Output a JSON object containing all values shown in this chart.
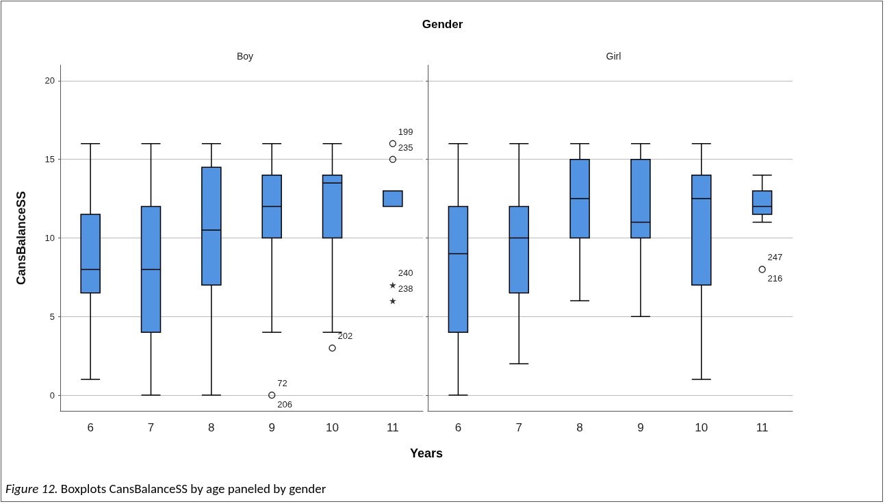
{
  "chart_data": [
    {
      "type": "box",
      "subtitle": "Boy",
      "xlabel": "Years",
      "ylabel": "CansBalanceSS",
      "categories": [
        "6",
        "7",
        "8",
        "9",
        "10",
        "11"
      ],
      "ylim": [
        -1,
        21
      ],
      "yticks": [
        0,
        5,
        10,
        15,
        20
      ],
      "grid": "y",
      "series": [
        {
          "type": "box",
          "color": "#5294e2",
          "boxes": [
            {
              "low": 1,
              "q1": 6.5,
              "median": 8,
              "q3": 11.5,
              "high": 16
            },
            {
              "low": 0,
              "q1": 4,
              "median": 8,
              "q3": 12,
              "high": 16
            },
            {
              "low": 0,
              "q1": 7,
              "median": 10.5,
              "q3": 14.5,
              "high": 16
            },
            {
              "low": 4,
              "q1": 10,
              "median": 12,
              "q3": 14,
              "high": 16
            },
            {
              "low": 4,
              "q1": 10,
              "median": 13.5,
              "q3": 14,
              "high": 16
            },
            {
              "low": 12,
              "q1": 12,
              "median": 13,
              "q3": 13,
              "high": 13
            }
          ]
        },
        {
          "type": "scatter",
          "marker": "circle",
          "color": "#000000",
          "x": [
            "9",
            "10",
            "11",
            "11"
          ],
          "values": [
            0,
            3,
            16,
            15
          ]
        },
        {
          "type": "scatter",
          "marker": "star",
          "color": "#000000",
          "x": [
            "11",
            "11"
          ],
          "values": [
            7,
            6
          ]
        }
      ],
      "annotations": [
        {
          "text": "72",
          "x": "9",
          "y": 0
        },
        {
          "text": "206",
          "x": "9",
          "y": 0
        },
        {
          "text": "202",
          "x": "10",
          "y": 3
        },
        {
          "text": "199",
          "x": "11",
          "y": 16
        },
        {
          "text": "235",
          "x": "11",
          "y": 15
        },
        {
          "text": "240",
          "x": "11",
          "y": 7
        },
        {
          "text": "238",
          "x": "11",
          "y": 6
        },
        "Figure 12. Boxplots CansBalanceSS by age paneled by gender"
      ]
    },
    {
      "type": "box",
      "title": "Gender",
      "subtitle": "Girl",
      "tick_labels": "x",
      "categories": [
        "6",
        "7",
        "8",
        "9",
        "10",
        "11"
      ],
      "ylim": [
        -1,
        21
      ],
      "yticks": [
        0,
        5,
        10,
        15,
        20
      ],
      "grid": "y",
      "series": [
        {
          "type": "box",
          "color": "#5294e2",
          "boxes": [
            {
              "low": 0,
              "q1": 4,
              "median": 9,
              "q3": 12,
              "high": 16
            },
            {
              "low": 2,
              "q1": 6.5,
              "median": 10,
              "q3": 12,
              "high": 16
            },
            {
              "low": 6,
              "q1": 10,
              "median": 12.5,
              "q3": 15,
              "high": 16
            },
            {
              "low": 5,
              "q1": 10,
              "median": 11,
              "q3": 15,
              "high": 16
            },
            {
              "low": 1,
              "q1": 7,
              "median": 12.5,
              "q3": 14,
              "high": 16
            },
            {
              "low": 11,
              "q1": 11.5,
              "median": 12,
              "q3": 13,
              "high": 14
            }
          ]
        },
        {
          "type": "scatter",
          "marker": "circle",
          "color": "#000000",
          "x": [
            "11"
          ],
          "values": [
            8
          ]
        }
      ],
      "annotations": [
        {
          "text": "247",
          "x": "11",
          "y": 8
        },
        {
          "text": "216",
          "x": "11",
          "y": 8
        }
      ]
    }
  ]
}
